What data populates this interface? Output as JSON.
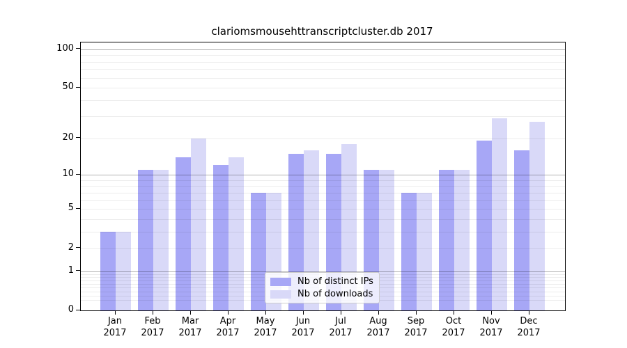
{
  "chart_data": {
    "type": "bar",
    "title": "clariomsmousehttranscriptcluster.db 2017",
    "year_label": "2017",
    "categories": [
      "Jan",
      "Feb",
      "Mar",
      "Apr",
      "May",
      "Jun",
      "Jul",
      "Aug",
      "Sep",
      "Oct",
      "Nov",
      "Dec"
    ],
    "series": [
      {
        "name": "Nb of distinct IPs",
        "color": "#a7a7f6",
        "values": [
          3,
          11,
          14,
          12,
          7,
          15,
          15,
          11,
          7,
          11,
          19,
          16
        ]
      },
      {
        "name": "Nb of downloads",
        "color": "#d9d9f8",
        "values": [
          3,
          11,
          20,
          14,
          7,
          16,
          18,
          11,
          7,
          11,
          29,
          27
        ]
      }
    ],
    "yscale": "log1p",
    "yticks": [
      0,
      1,
      2,
      5,
      10,
      20,
      50,
      100
    ],
    "ylim": [
      0,
      113
    ],
    "grid": {
      "on": true,
      "major": [
        1,
        10,
        100
      ],
      "minor": [
        0.2,
        0.3,
        0.4,
        0.5,
        0.6,
        0.7,
        0.8,
        0.9,
        2,
        3,
        4,
        5,
        6,
        7,
        8,
        9,
        20,
        30,
        40,
        50,
        60,
        70,
        80,
        90
      ]
    },
    "legend_position": "lower-center"
  }
}
